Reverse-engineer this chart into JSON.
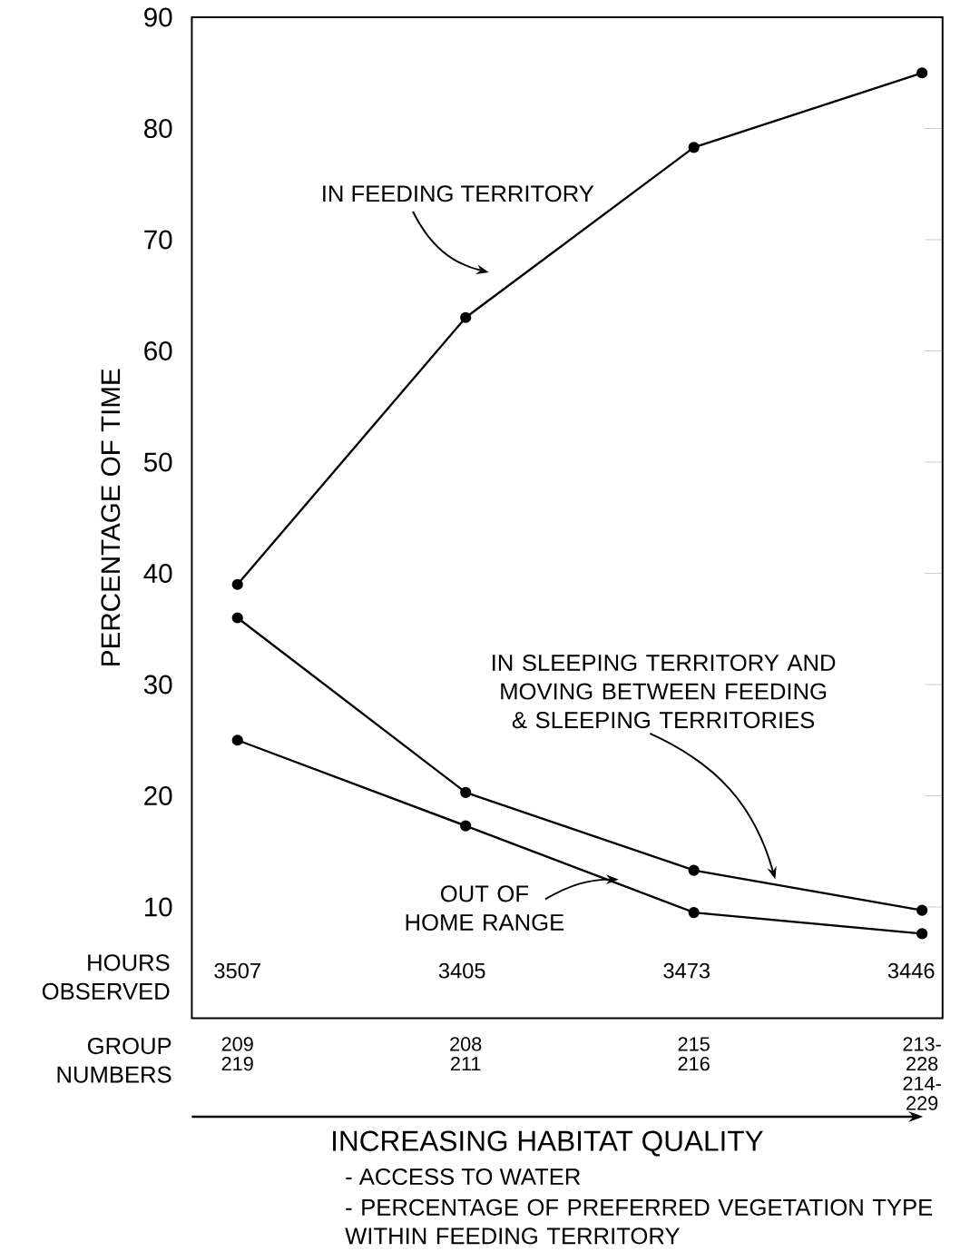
{
  "chart_data": {
    "type": "line",
    "ylabel": "PERCENTAGE OF TIME",
    "categories": [
      "209 219",
      "208 211",
      "215 216",
      "213-228 214-229"
    ],
    "ylim": [
      0,
      90
    ],
    "yticks": [
      10,
      20,
      30,
      40,
      50,
      60,
      70,
      80,
      90
    ],
    "grid": false,
    "marker": "circle",
    "line_style": "solid",
    "series": [
      {
        "name": "IN FEEDING TERRITORY",
        "color": "#000000",
        "values": [
          39,
          63,
          78.3,
          85
        ]
      },
      {
        "name": "IN SLEEPING TERRITORY AND MOVING BETWEEN FEEDING & SLEEPING TERRITORIES",
        "color": "#000000",
        "values": [
          36,
          20.3,
          13.3,
          9.7
        ]
      },
      {
        "name": "OUT OF HOME RANGE",
        "color": "#000000",
        "values": [
          25,
          17.3,
          9.5,
          7.6
        ]
      }
    ],
    "annotations": [
      "HOURS OBSERVED",
      "3507",
      "3405",
      "3473",
      "3446",
      "GROUP NUMBERS",
      "INCREASING HABITAT QUALITY",
      "- ACCESS TO WATER",
      "- PERCENTAGE OF PREFERRED VEGETATION TYPE WITHIN FEEDING TERRITORY"
    ]
  }
}
